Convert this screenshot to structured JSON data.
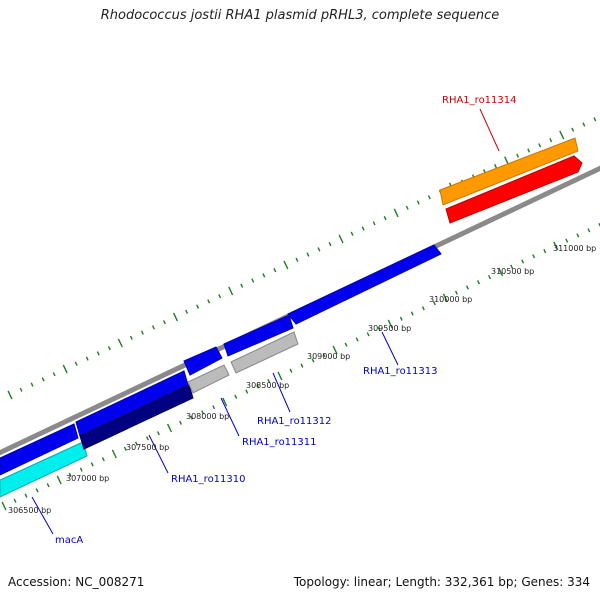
{
  "title": "Rhodococcus jostii RHA1 plasmid pRHL3, complete sequence",
  "accession": "Accession: NC_008271",
  "summary": "Topology: linear; Length: 332,361 bp; Genes: 334",
  "colors": {
    "backbone": "#8a8a8a",
    "tick": "#1e7d1e",
    "label_blue": "#0000cc",
    "label_red": "#cc0000"
  },
  "bp_labels": [
    "306500 bp",
    "307000 bp",
    "307500 bp",
    "308000 bp",
    "308500 bp",
    "309000 bp",
    "309500 bp",
    "310000 bp",
    "310500 bp",
    "311000 bp"
  ],
  "genes": [
    {
      "name": "RHA1_ro11314",
      "color": "#ff9900"
    },
    {
      "name": "RHA1_ro11313",
      "color": "#0000ee"
    },
    {
      "name": "RHA1_ro11312",
      "color": "#bbbbbb"
    },
    {
      "name": "RHA1_ro11311",
      "color": "#000080"
    },
    {
      "name": "RHA1_ro11310",
      "color": "#00eeee"
    },
    {
      "name": "macA",
      "color": "#00eeee"
    }
  ]
}
